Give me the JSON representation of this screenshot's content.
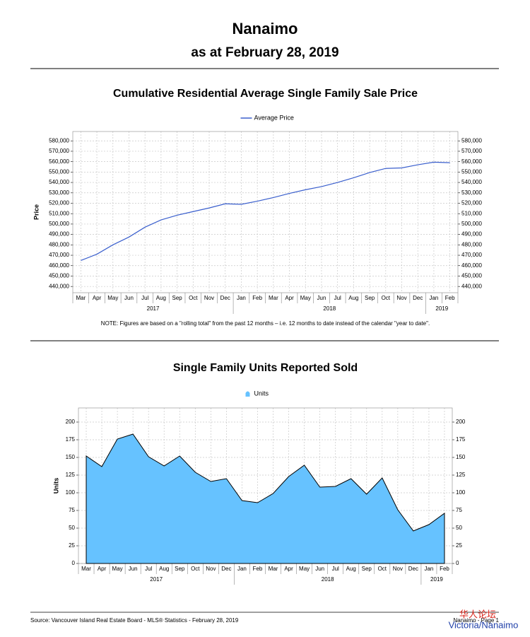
{
  "header": {
    "title": "Nanaimo",
    "subtitle": "as at February 28, 2019"
  },
  "chart_data": [
    {
      "type": "line",
      "title": "Cumulative Residential Average Single Family Sale Price",
      "y_label": "Price",
      "note": "NOTE:  Figures are based on a \"rolling total\" from the past 12 months – i.e. 12 months to date instead of the calendar \"year to date\".",
      "categories": [
        "Mar",
        "Apr",
        "May",
        "Jun",
        "Jul",
        "Aug",
        "Sep",
        "Oct",
        "Nov",
        "Dec",
        "Jan",
        "Feb",
        "Mar",
        "Apr",
        "May",
        "Jun",
        "Jul",
        "Aug",
        "Sep",
        "Oct",
        "Nov",
        "Dec",
        "Jan",
        "Feb"
      ],
      "groups": [
        "2017",
        null,
        null,
        null,
        null,
        null,
        null,
        null,
        null,
        null,
        "2018",
        null,
        null,
        null,
        null,
        null,
        null,
        null,
        null,
        null,
        null,
        null,
        "2019",
        null
      ],
      "series": [
        {
          "name": "Average Price",
          "color": "#3a5fcd",
          "values": [
            465000,
            471000,
            480000,
            487500,
            497000,
            504000,
            508500,
            512000,
            515500,
            519500,
            519000,
            522000,
            525500,
            529500,
            533000,
            536000,
            540000,
            544500,
            549500,
            553500,
            554000,
            557000,
            559500,
            559000
          ]
        }
      ],
      "ylim": [
        434000,
        589000
      ],
      "yticks": [
        {
          "value": 440000,
          "label": "440,000"
        },
        {
          "value": 450000,
          "label": "450,000"
        },
        {
          "value": 460000,
          "label": "460,000"
        },
        {
          "value": 470000,
          "label": "470,000"
        },
        {
          "value": 480000,
          "label": "480,000"
        },
        {
          "value": 490000,
          "label": "490,000"
        },
        {
          "value": 500000,
          "label": "500,000"
        },
        {
          "value": 510000,
          "label": "510,000"
        },
        {
          "value": 520000,
          "label": "520,000"
        },
        {
          "value": 530000,
          "label": "530,000"
        },
        {
          "value": 540000,
          "label": "540,000"
        },
        {
          "value": 550000,
          "label": "550,000"
        },
        {
          "value": 560000,
          "label": "560,000"
        },
        {
          "value": 570000,
          "label": "570,000"
        },
        {
          "value": 580000,
          "label": "580,000"
        }
      ],
      "grid": true
    },
    {
      "type": "area",
      "title": "Single Family Units Reported Sold",
      "y_label": "Units",
      "categories": [
        "Mar",
        "Apr",
        "May",
        "Jun",
        "Jul",
        "Aug",
        "Sep",
        "Oct",
        "Nov",
        "Dec",
        "Jan",
        "Feb",
        "Mar",
        "Apr",
        "May",
        "Jun",
        "Jul",
        "Aug",
        "Sep",
        "Oct",
        "Nov",
        "Dec",
        "Jan",
        "Feb"
      ],
      "groups": [
        "2017",
        null,
        null,
        null,
        null,
        null,
        null,
        null,
        null,
        null,
        "2018",
        null,
        null,
        null,
        null,
        null,
        null,
        null,
        null,
        null,
        null,
        null,
        "2019",
        null
      ],
      "series": [
        {
          "name": "Units",
          "color": "#66c2ff",
          "values": [
            152,
            137,
            176,
            183,
            151,
            138,
            152,
            129,
            116,
            120,
            89,
            86,
            99,
            123,
            139,
            108,
            109,
            120,
            98,
            121,
            76,
            46,
            55,
            71
          ]
        }
      ],
      "ylim": [
        0,
        220
      ],
      "yticks": [
        0,
        25,
        50,
        75,
        100,
        125,
        150,
        175,
        200
      ],
      "grid": true
    }
  ],
  "footer": {
    "source": "Source: Vancouver Island Real Estate Board - MLS® Statistics - February 28, 2019",
    "page": "Nanaimo - Page 1"
  },
  "watermark": {
    "site": "华人论坛",
    "region": "Victoria/Nanaimo"
  }
}
